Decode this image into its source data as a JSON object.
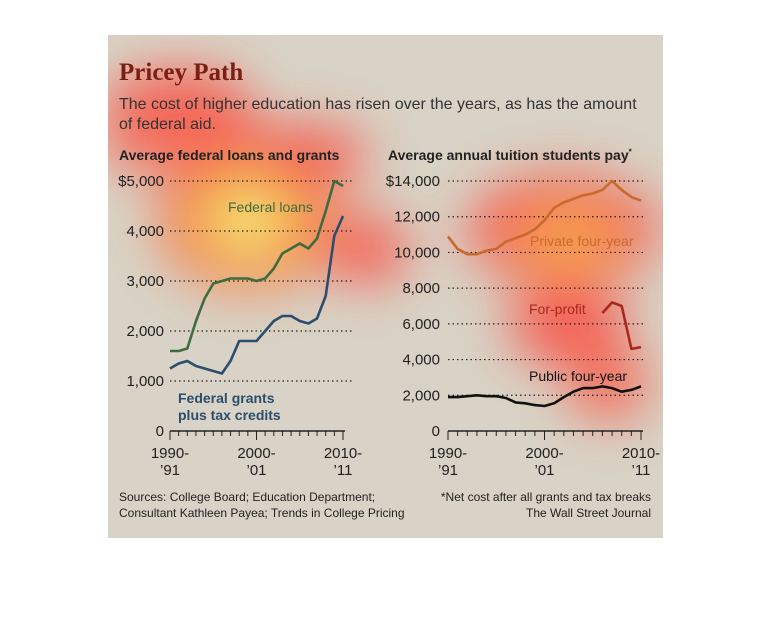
{
  "title": "Pricey Path",
  "subtitle": "The cost of higher education has risen over the years, as has the amount of federal aid.",
  "source": [
    "Sources: College Board; Education Department;",
    "Consultant Kathleen Payea; Trends in College Pricing"
  ],
  "footnote": "*Net cost after all grants and tax breaks",
  "credit": "The Wall Street Journal",
  "colors": {
    "background": "#d8d3c6",
    "loans": "#3f6b3f",
    "grants": "#2c4d6e",
    "private": "#c86a2e",
    "forprofit": "#a8291f",
    "public": "#111111",
    "title": "#7a1f14"
  },
  "chart_data": [
    {
      "type": "line",
      "title": "Average federal loans and grants",
      "ylim": [
        0,
        5000
      ],
      "yticks": [
        0,
        1000,
        2000,
        3000,
        4000,
        5000
      ],
      "ytick_labels": [
        "0",
        "1,000",
        "2,000",
        "3,000",
        "4,000",
        "$5,000"
      ],
      "xlim": [
        1990,
        2010
      ],
      "xtick_labels": [
        {
          "x": 1990,
          "l1": "1990-",
          "l2": "’91"
        },
        {
          "x": 2000,
          "l1": "2000-",
          "l2": "’01"
        },
        {
          "x": 2010,
          "l1": "2010-",
          "l2": "’11"
        }
      ],
      "series": [
        {
          "name": "Federal loans",
          "color_key": "loans",
          "x": [
            1990,
            1991,
            1992,
            1993,
            1994,
            1995,
            1996,
            1997,
            1998,
            1999,
            2000,
            2001,
            2002,
            2003,
            2004,
            2005,
            2006,
            2007,
            2008,
            2009,
            2010
          ],
          "y": [
            1600,
            1600,
            1650,
            2200,
            2650,
            2950,
            3000,
            3050,
            3050,
            3050,
            3000,
            3050,
            3250,
            3550,
            3650,
            3750,
            3650,
            3850,
            4400,
            5000,
            4900
          ]
        },
        {
          "name": "Federal grants plus tax credits",
          "color_key": "grants",
          "x": [
            1990,
            1991,
            1992,
            1993,
            1994,
            1995,
            1996,
            1997,
            1998,
            1999,
            2000,
            2001,
            2002,
            2003,
            2004,
            2005,
            2006,
            2007,
            2008,
            2009,
            2010
          ],
          "y": [
            1250,
            1350,
            1400,
            1300,
            1250,
            1200,
            1150,
            1400,
            1800,
            1800,
            1800,
            2000,
            2200,
            2300,
            2300,
            2200,
            2150,
            2250,
            2700,
            3900,
            4300
          ]
        }
      ]
    },
    {
      "type": "line",
      "title": "Average annual tuition students pay",
      "title_mark": "*",
      "ylim": [
        0,
        14000
      ],
      "yticks": [
        0,
        2000,
        4000,
        6000,
        8000,
        10000,
        12000,
        14000
      ],
      "ytick_labels": [
        "0",
        "2,000",
        "4,000",
        "6,000",
        "8,000",
        "10,000",
        "12,000",
        "$14,000"
      ],
      "xlim": [
        1990,
        2010
      ],
      "xtick_labels": [
        {
          "x": 1990,
          "l1": "1990-",
          "l2": "’91"
        },
        {
          "x": 2000,
          "l1": "2000-",
          "l2": "’01"
        },
        {
          "x": 2010,
          "l1": "2010-",
          "l2": "’11"
        }
      ],
      "series": [
        {
          "name": "Private four-year",
          "color_key": "private",
          "x": [
            1990,
            1991,
            1992,
            1993,
            1994,
            1995,
            1996,
            1997,
            1998,
            1999,
            2000,
            2001,
            2002,
            2003,
            2004,
            2005,
            2006,
            2007,
            2008,
            2009,
            2010
          ],
          "y": [
            10900,
            10200,
            9900,
            9900,
            10100,
            10200,
            10600,
            10800,
            11000,
            11300,
            11800,
            12500,
            12800,
            13000,
            13200,
            13300,
            13500,
            14000,
            13500,
            13100,
            12900
          ]
        },
        {
          "name": "For-profit",
          "color_key": "forprofit",
          "x": [
            2006,
            2007,
            2008,
            2009,
            2010
          ],
          "y": [
            6600,
            7200,
            7000,
            4600,
            4700
          ]
        },
        {
          "name": "Public four-year",
          "color_key": "public",
          "x": [
            1990,
            1991,
            1992,
            1993,
            1994,
            1995,
            1996,
            1997,
            1998,
            1999,
            2000,
            2001,
            2002,
            2003,
            2004,
            2005,
            2006,
            2007,
            2008,
            2009,
            2010
          ],
          "y": [
            1900,
            1900,
            1950,
            2000,
            1950,
            1950,
            1850,
            1600,
            1550,
            1450,
            1400,
            1550,
            1900,
            2200,
            2400,
            2400,
            2500,
            2400,
            2200,
            2300,
            2500
          ]
        }
      ]
    }
  ]
}
